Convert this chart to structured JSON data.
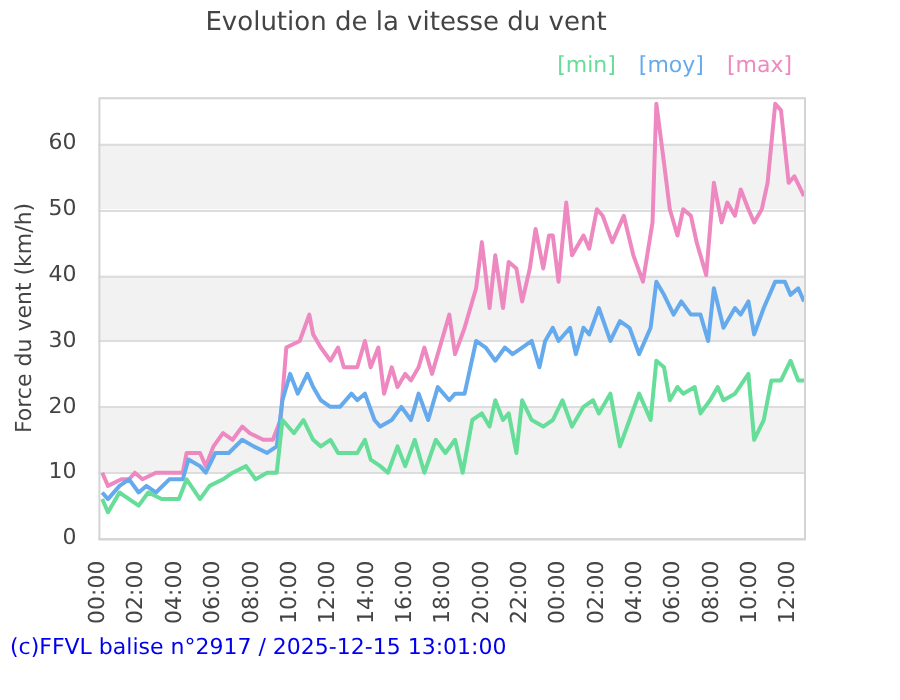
{
  "chart_data": {
    "type": "line",
    "title": "Evolution de la vitesse du vent",
    "ylabel": "Force du vent (km/h)",
    "annotations": [
      "(c)FFVL balise n°2917 / 2025-12-15 13:01:00"
    ],
    "xlim": [
      "2025-12-14T00:00",
      "2025-12-15T12:48"
    ],
    "xticks": [
      {
        "value": "2025-12-14T00:00",
        "label": "00:00"
      },
      {
        "value": "2025-12-14T02:00",
        "label": "02:00"
      },
      {
        "value": "2025-12-14T04:00",
        "label": "04:00"
      },
      {
        "value": "2025-12-14T06:00",
        "label": "06:00"
      },
      {
        "value": "2025-12-14T08:00",
        "label": "08:00"
      },
      {
        "value": "2025-12-14T10:00",
        "label": "10:00"
      },
      {
        "value": "2025-12-14T12:00",
        "label": "12:00"
      },
      {
        "value": "2025-12-14T14:00",
        "label": "14:00"
      },
      {
        "value": "2025-12-14T16:00",
        "label": "16:00"
      },
      {
        "value": "2025-12-14T18:00",
        "label": "18:00"
      },
      {
        "value": "2025-12-14T20:00",
        "label": "20:00"
      },
      {
        "value": "2025-12-14T22:00",
        "label": "22:00"
      },
      {
        "value": "2025-12-15T00:00",
        "label": "00:00"
      },
      {
        "value": "2025-12-15T02:00",
        "label": "02:00"
      },
      {
        "value": "2025-12-15T04:00",
        "label": "04:00"
      },
      {
        "value": "2025-12-15T06:00",
        "label": "06:00"
      },
      {
        "value": "2025-12-15T08:00",
        "label": "08:00"
      },
      {
        "value": "2025-12-15T10:00",
        "label": "10:00"
      },
      {
        "value": "2025-12-15T12:00",
        "label": "12:00"
      }
    ],
    "ylim": [
      0,
      67
    ],
    "yticks": [
      0,
      10,
      20,
      30,
      40,
      50,
      60
    ],
    "grid": "y",
    "legend": "top right",
    "marker": "none",
    "line_style": "solid",
    "series": [
      {
        "name": "[min]",
        "color": "#66dd99",
        "x": [
          "2025-12-14T00:12",
          "2025-12-14T00:30",
          "2025-12-14T01:06",
          "2025-12-14T01:36",
          "2025-12-14T02:06",
          "2025-12-14T02:36",
          "2025-12-14T03:18",
          "2025-12-14T04:12",
          "2025-12-14T04:36",
          "2025-12-14T05:18",
          "2025-12-14T05:48",
          "2025-12-14T06:30",
          "2025-12-14T07:00",
          "2025-12-14T07:42",
          "2025-12-14T08:12",
          "2025-12-14T08:48",
          "2025-12-14T09:18",
          "2025-12-14T09:36",
          "2025-12-14T10:12",
          "2025-12-14T10:42",
          "2025-12-14T11:12",
          "2025-12-14T11:36",
          "2025-12-14T12:06",
          "2025-12-14T12:30",
          "2025-12-14T13:00",
          "2025-12-14T13:30",
          "2025-12-14T13:54",
          "2025-12-14T14:12",
          "2025-12-14T14:42",
          "2025-12-14T15:06",
          "2025-12-14T15:36",
          "2025-12-14T16:00",
          "2025-12-14T16:30",
          "2025-12-14T17:00",
          "2025-12-14T17:36",
          "2025-12-14T18:06",
          "2025-12-14T18:36",
          "2025-12-14T19:00",
          "2025-12-14T19:30",
          "2025-12-14T20:00",
          "2025-12-14T20:24",
          "2025-12-14T20:42",
          "2025-12-14T21:06",
          "2025-12-14T21:24",
          "2025-12-14T21:48",
          "2025-12-14T22:06",
          "2025-12-14T22:36",
          "2025-12-14T23:12",
          "2025-12-14T23:42",
          "2025-12-15T00:12",
          "2025-12-15T00:42",
          "2025-12-15T01:18",
          "2025-12-15T01:48",
          "2025-12-15T02:06",
          "2025-12-15T02:42",
          "2025-12-15T03:12",
          "2025-12-15T03:42",
          "2025-12-15T04:12",
          "2025-12-15T04:48",
          "2025-12-15T05:06",
          "2025-12-15T05:30",
          "2025-12-15T05:48",
          "2025-12-15T06:12",
          "2025-12-15T06:30",
          "2025-12-15T07:06",
          "2025-12-15T07:24",
          "2025-12-15T07:54",
          "2025-12-15T08:18",
          "2025-12-15T08:36",
          "2025-12-15T09:12",
          "2025-12-15T09:54",
          "2025-12-15T10:12",
          "2025-12-15T10:42",
          "2025-12-15T11:06",
          "2025-12-15T11:36",
          "2025-12-15T12:06",
          "2025-12-15T12:30",
          "2025-12-15T12:48"
        ],
        "values": [
          6,
          4,
          7,
          6,
          5,
          7,
          6,
          6,
          9,
          6,
          8,
          9,
          10,
          11,
          9,
          10,
          10,
          18,
          16,
          18,
          15,
          14,
          15,
          13,
          13,
          13,
          15,
          12,
          11,
          10,
          14,
          11,
          15,
          10,
          15,
          13,
          15,
          10,
          18,
          19,
          17,
          21,
          18,
          19,
          13,
          21,
          18,
          17,
          18,
          21,
          17,
          20,
          21,
          19,
          22,
          14,
          18,
          22,
          18,
          27,
          26,
          21,
          23,
          22,
          23,
          19,
          21,
          23,
          21,
          22,
          25,
          15,
          18,
          24,
          24,
          27,
          24,
          24
        ]
      },
      {
        "name": "[moy]",
        "color": "#66aaee",
        "x": [
          "2025-12-14T00:12",
          "2025-12-14T00:30",
          "2025-12-14T01:06",
          "2025-12-14T01:36",
          "2025-12-14T02:06",
          "2025-12-14T02:30",
          "2025-12-14T03:00",
          "2025-12-14T03:42",
          "2025-12-14T04:24",
          "2025-12-14T04:42",
          "2025-12-14T05:18",
          "2025-12-14T05:36",
          "2025-12-14T06:06",
          "2025-12-14T06:48",
          "2025-12-14T07:30",
          "2025-12-14T08:06",
          "2025-12-14T08:48",
          "2025-12-14T09:18",
          "2025-12-14T09:36",
          "2025-12-14T10:00",
          "2025-12-14T10:24",
          "2025-12-14T10:54",
          "2025-12-14T11:12",
          "2025-12-14T11:36",
          "2025-12-14T12:06",
          "2025-12-14T12:36",
          "2025-12-14T13:12",
          "2025-12-14T13:30",
          "2025-12-14T13:54",
          "2025-12-14T14:24",
          "2025-12-14T14:42",
          "2025-12-14T15:18",
          "2025-12-14T15:48",
          "2025-12-14T16:18",
          "2025-12-14T16:42",
          "2025-12-14T17:12",
          "2025-12-14T17:42",
          "2025-12-14T18:18",
          "2025-12-14T18:36",
          "2025-12-14T19:06",
          "2025-12-14T19:42",
          "2025-12-14T20:12",
          "2025-12-14T20:42",
          "2025-12-14T21:12",
          "2025-12-14T21:36",
          "2025-12-14T22:06",
          "2025-12-14T22:36",
          "2025-12-14T23:00",
          "2025-12-14T23:18",
          "2025-12-14T23:42",
          "2025-12-15T00:00",
          "2025-12-15T00:36",
          "2025-12-15T00:54",
          "2025-12-15T01:18",
          "2025-12-15T01:36",
          "2025-12-15T02:06",
          "2025-12-15T02:42",
          "2025-12-15T03:12",
          "2025-12-15T03:42",
          "2025-12-15T04:12",
          "2025-12-15T04:48",
          "2025-12-15T05:06",
          "2025-12-15T05:30",
          "2025-12-15T06:00",
          "2025-12-15T06:24",
          "2025-12-15T06:54",
          "2025-12-15T07:24",
          "2025-12-15T07:48",
          "2025-12-15T08:06",
          "2025-12-15T08:36",
          "2025-12-15T09:12",
          "2025-12-15T09:30",
          "2025-12-15T09:54",
          "2025-12-15T10:12",
          "2025-12-15T10:42",
          "2025-12-15T11:18",
          "2025-12-15T11:48",
          "2025-12-15T12:06",
          "2025-12-15T12:30",
          "2025-12-15T12:48"
        ],
        "values": [
          7,
          6,
          8,
          9,
          7,
          8,
          7,
          9,
          9,
          12,
          11,
          10,
          13,
          13,
          15,
          14,
          13,
          14,
          21,
          25,
          22,
          25,
          23,
          21,
          20,
          20,
          22,
          21,
          22,
          18,
          17,
          18,
          20,
          18,
          22,
          18,
          23,
          21,
          22,
          22,
          30,
          29,
          27,
          29,
          28,
          29,
          30,
          26,
          30,
          32,
          30,
          32,
          28,
          32,
          31,
          35,
          30,
          33,
          32,
          28,
          32,
          39,
          37,
          34,
          36,
          34,
          34,
          30,
          38,
          32,
          35,
          34,
          36,
          31,
          35,
          39,
          39,
          37,
          38,
          36
        ]
      },
      {
        "name": "[max]",
        "color": "#ee88c0",
        "x": [
          "2025-12-14T00:12",
          "2025-12-14T00:30",
          "2025-12-14T01:12",
          "2025-12-14T01:36",
          "2025-12-14T01:54",
          "2025-12-14T02:18",
          "2025-12-14T03:00",
          "2025-12-14T04:24",
          "2025-12-14T04:36",
          "2025-12-14T05:18",
          "2025-12-14T05:36",
          "2025-12-14T06:00",
          "2025-12-14T06:30",
          "2025-12-14T07:00",
          "2025-12-14T07:30",
          "2025-12-14T07:54",
          "2025-12-14T08:36",
          "2025-12-14T09:06",
          "2025-12-14T09:30",
          "2025-12-14T09:48",
          "2025-12-14T10:30",
          "2025-12-14T11:00",
          "2025-12-14T11:12",
          "2025-12-14T11:36",
          "2025-12-14T12:06",
          "2025-12-14T12:30",
          "2025-12-14T12:48",
          "2025-12-14T13:30",
          "2025-12-14T13:54",
          "2025-12-14T14:12",
          "2025-12-14T14:36",
          "2025-12-14T14:54",
          "2025-12-14T15:18",
          "2025-12-14T15:36",
          "2025-12-14T16:00",
          "2025-12-14T16:18",
          "2025-12-14T16:42",
          "2025-12-14T17:00",
          "2025-12-14T17:24",
          "2025-12-14T17:54",
          "2025-12-14T18:18",
          "2025-12-14T18:36",
          "2025-12-14T19:06",
          "2025-12-14T19:42",
          "2025-12-14T20:00",
          "2025-12-14T20:24",
          "2025-12-14T20:42",
          "2025-12-14T21:06",
          "2025-12-14T21:24",
          "2025-12-14T21:48",
          "2025-12-14T22:06",
          "2025-12-14T22:30",
          "2025-12-14T22:48",
          "2025-12-14T23:12",
          "2025-12-14T23:30",
          "2025-12-14T23:42",
          "2025-12-15T00:00",
          "2025-12-15T00:24",
          "2025-12-15T00:42",
          "2025-12-15T01:18",
          "2025-12-15T01:36",
          "2025-12-15T02:00",
          "2025-12-15T02:18",
          "2025-12-15T02:48",
          "2025-12-15T03:24",
          "2025-12-15T03:54",
          "2025-12-15T04:24",
          "2025-12-15T04:54",
          "2025-12-15T05:06",
          "2025-12-15T05:30",
          "2025-12-15T05:48",
          "2025-12-15T06:12",
          "2025-12-15T06:30",
          "2025-12-15T06:54",
          "2025-12-15T07:12",
          "2025-12-15T07:42",
          "2025-12-15T08:06",
          "2025-12-15T08:30",
          "2025-12-15T08:48",
          "2025-12-15T09:12",
          "2025-12-15T09:30",
          "2025-12-15T09:54",
          "2025-12-15T10:12",
          "2025-12-15T10:36",
          "2025-12-15T10:54",
          "2025-12-15T11:18",
          "2025-12-15T11:36",
          "2025-12-15T12:00",
          "2025-12-15T12:18",
          "2025-12-15T12:48"
        ],
        "values": [
          10,
          8,
          9,
          9,
          10,
          9,
          10,
          10,
          13,
          13,
          11,
          14,
          16,
          15,
          17,
          16,
          15,
          15,
          18,
          29,
          30,
          34,
          31,
          29,
          27,
          29,
          26,
          26,
          30,
          26,
          29,
          22,
          26,
          23,
          25,
          24,
          26,
          29,
          25,
          30,
          34,
          28,
          32,
          38,
          45,
          35,
          43,
          35,
          42,
          41,
          36,
          41,
          47,
          41,
          46,
          46,
          39,
          51,
          43,
          46,
          44,
          50,
          49,
          45,
          49,
          43,
          39,
          48,
          66,
          57,
          50,
          46,
          50,
          49,
          45,
          40,
          54,
          48,
          51,
          49,
          53,
          50,
          48,
          50,
          54,
          66,
          65,
          54,
          55,
          52
        ]
      }
    ]
  }
}
